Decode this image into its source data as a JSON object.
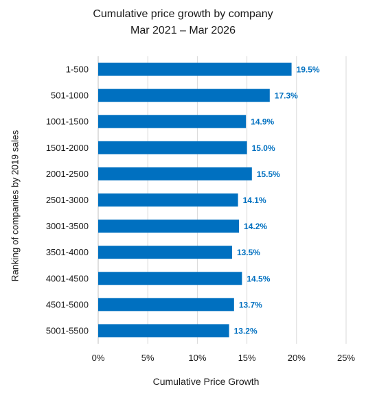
{
  "chart_data": {
    "type": "bar",
    "orientation": "horizontal",
    "title": "Cumulative price growth by company",
    "subtitle": "Mar 2021 – Mar 2026",
    "xlabel": "Cumulative Price Growth",
    "ylabel": "Ranking of companies by 2019 sales",
    "categories": [
      "1-500",
      "501-1000",
      "1001-1500",
      "1501-2000",
      "2001-2500",
      "2501-3000",
      "3001-3500",
      "3501-4000",
      "4001-4500",
      "4501-5000",
      "5001-5500"
    ],
    "values": [
      19.5,
      17.3,
      14.9,
      15.0,
      15.5,
      14.1,
      14.2,
      13.5,
      14.5,
      13.7,
      13.2
    ],
    "data_labels": [
      "19.5%",
      "17.3%",
      "14.9%",
      "15.0%",
      "15.5%",
      "14.1%",
      "14.2%",
      "13.5%",
      "14.5%",
      "13.7%",
      "13.2%"
    ],
    "xlim": [
      0,
      25
    ],
    "x_ticks": [
      0,
      5,
      10,
      15,
      20,
      25
    ],
    "x_tick_labels": [
      "0%",
      "5%",
      "10%",
      "15%",
      "20%",
      "25%"
    ],
    "grid": "vertical",
    "legend": "none",
    "bar_color": "#0070C0",
    "label_color": "#0070C0"
  }
}
